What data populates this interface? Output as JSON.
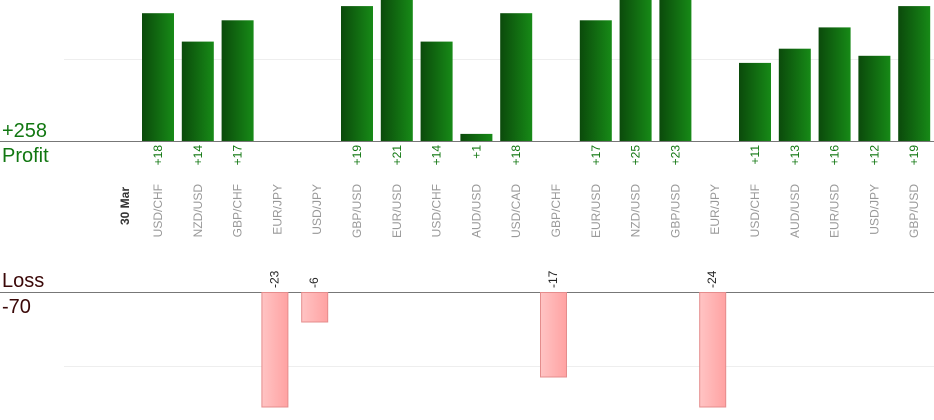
{
  "chart_data": {
    "type": "bar",
    "date_label": "30 Mar",
    "profit_total": "+258",
    "profit_label": "Profit",
    "loss_label": "Loss",
    "loss_total": "-70",
    "categories": [
      "USD/CHF",
      "NZD/USD",
      "GBP/CHF",
      "EUR/JPY",
      "USD/JPY",
      "GBP/USD",
      "EUR/USD",
      "USD/CHF",
      "AUD/USD",
      "USD/CAD",
      "GBP/CHF",
      "EUR/USD",
      "NZD/USD",
      "GBP/USD",
      "EUR/JPY",
      "USD/CHF",
      "AUD/USD",
      "EUR/USD",
      "USD/JPY",
      "GBP/USD"
    ],
    "values": [
      18,
      14,
      17,
      -23,
      -6,
      19,
      21,
      14,
      1,
      18,
      -17,
      17,
      25,
      23,
      -24,
      11,
      13,
      16,
      12,
      19
    ],
    "labels": [
      "+18",
      "+14",
      "+17",
      "-23",
      "-6",
      "+19",
      "+21",
      "+14",
      "+1",
      "+18",
      "-17",
      "+17",
      "+25",
      "+23",
      "-24",
      "+11",
      "+13",
      "+16",
      "+12",
      "+19"
    ],
    "ylim_profit": [
      0,
      20
    ],
    "ylim_loss": [
      0,
      20
    ],
    "grid": true,
    "colors": {
      "profit_dark": "#0b4a0b",
      "profit_light": "#178a17",
      "loss_fill": "#ffb3b3",
      "loss_edge": "#e58c8c",
      "profit_text": "#117711",
      "loss_text": "#3b0808",
      "axis_text": "#999999",
      "date_text": "#333333"
    }
  }
}
